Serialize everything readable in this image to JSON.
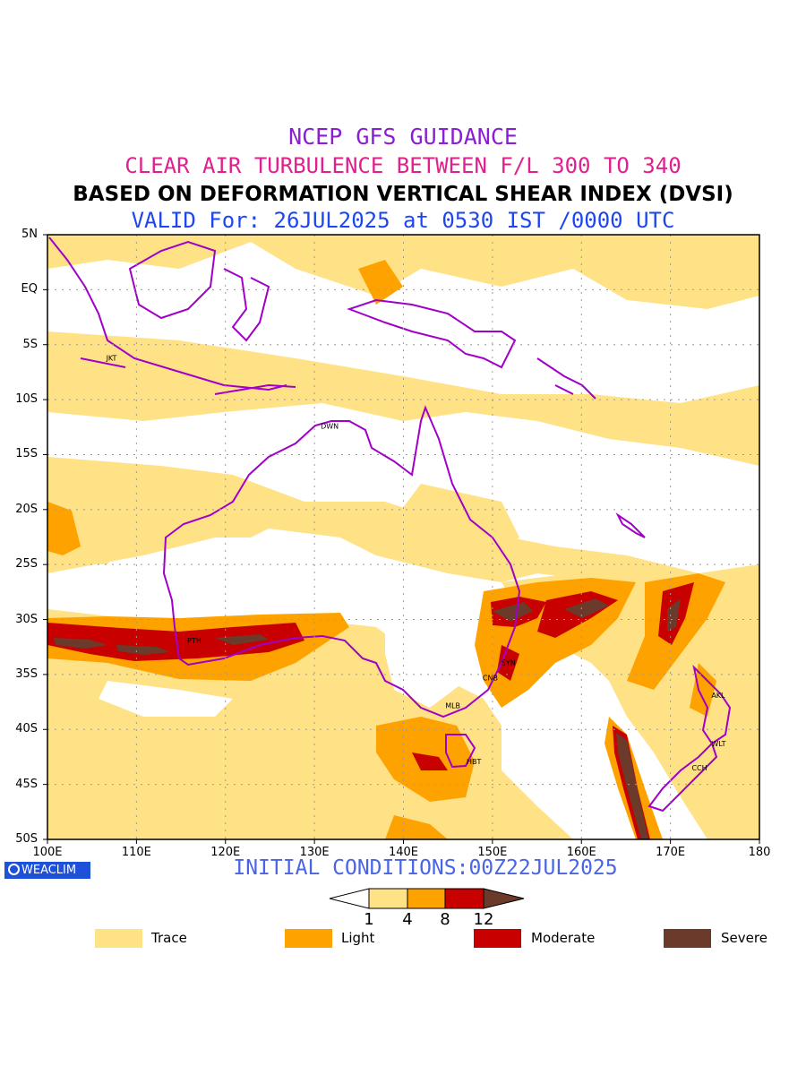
{
  "title": {
    "line1": "NCEP GFS GUIDANCE",
    "line2": "CLEAR AIR TURBULENCE BETWEEN F/L 300 TO 340",
    "line3": "BASED ON DEFORMATION VERTICAL SHEAR INDEX (DVSI)",
    "line4": "VALID For: 26JUL2025 at 0530 IST /0000 UTC"
  },
  "colors": {
    "line1": "#8a1ed2",
    "line2": "#e0208c",
    "line3": "#000000",
    "line4": "#1e46f0",
    "init": "#4a64e6",
    "trace": "#ffe186",
    "light": "#fea200",
    "moderate": "#c80000",
    "severe": "#6b3a2a",
    "coast": "#a000c8",
    "grid": "#9a9a9a"
  },
  "map": {
    "lat_labels": [
      "5N",
      "EQ",
      "5S",
      "10S",
      "15S",
      "20S",
      "25S",
      "30S",
      "35S",
      "40S",
      "45S",
      "50S"
    ],
    "lon_labels": [
      "100E",
      "110E",
      "120E",
      "130E",
      "140E",
      "150E",
      "160E",
      "170E",
      "180"
    ],
    "lat_range": [
      -50,
      5
    ],
    "lon_range": [
      100,
      180
    ],
    "stations": [
      {
        "code": "JKT",
        "lon": 106.8,
        "lat": -6.2
      },
      {
        "code": "DWN",
        "lon": 130.9,
        "lat": -12.4
      },
      {
        "code": "PTH",
        "lon": 115.9,
        "lat": -31.9
      },
      {
        "code": "SYN",
        "lon": 151.2,
        "lat": -33.9
      },
      {
        "code": "CNB",
        "lon": 149.1,
        "lat": -35.3
      },
      {
        "code": "MLB",
        "lon": 144.9,
        "lat": -37.8
      },
      {
        "code": "HBT",
        "lon": 147.3,
        "lat": -42.9
      },
      {
        "code": "AKL",
        "lon": 174.8,
        "lat": -36.9
      },
      {
        "code": "WLT",
        "lon": 174.8,
        "lat": -41.3
      },
      {
        "code": "CCH",
        "lon": 172.6,
        "lat": -43.5
      }
    ]
  },
  "logo": "WEACLIM",
  "icons": {
    "logo": "weaclim-circle-icon"
  },
  "initial_conditions": "INITIAL CONDITIONS:00Z22JUL2025",
  "colorbar": {
    "ticks": [
      "1",
      "4",
      "8",
      "12"
    ],
    "levels": [
      1,
      4,
      8,
      12
    ]
  },
  "legend": [
    {
      "label": "Trace",
      "color": "#ffe186"
    },
    {
      "label": "Light",
      "color": "#fea200"
    },
    {
      "label": "Moderate",
      "color": "#c80000"
    },
    {
      "label": "Severe",
      "color": "#6b3a2a"
    }
  ]
}
